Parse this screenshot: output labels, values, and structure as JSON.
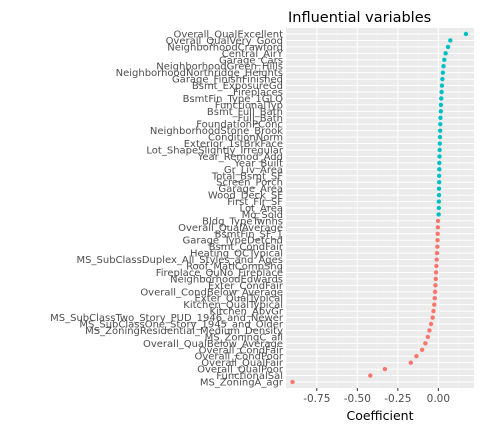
{
  "chart_data": {
    "type": "scatter",
    "title": "Influential variables",
    "xlabel": "Coefficient",
    "ylabel": "",
    "xlim": [
      -0.94,
      0.22
    ],
    "xticks": [
      -0.75,
      -0.5,
      -0.25,
      0.0
    ],
    "xtick_labels": [
      "-0.75",
      "-0.50",
      "-0.25",
      "0.00"
    ],
    "grid": true,
    "legend": "none",
    "colors": {
      "positive": "#00bfc4",
      "negative": "#f8766d"
    },
    "points": [
      {
        "label": "Overall_QualExcellent",
        "value": 0.17
      },
      {
        "label": "Overall_QualVery_Good",
        "value": 0.074
      },
      {
        "label": "NeighborhoodCrawford",
        "value": 0.06
      },
      {
        "label": "Central_AirY",
        "value": 0.045
      },
      {
        "label": "Garage_Cars",
        "value": 0.037
      },
      {
        "label": "NeighborhoodGreen_Hills",
        "value": 0.032
      },
      {
        "label": "NeighborhoodNorthridge_Heights",
        "value": 0.028
      },
      {
        "label": "Garage_FinishFinished",
        "value": 0.025
      },
      {
        "label": "Bsmt_ExposureGd",
        "value": 0.022
      },
      {
        "label": "Fireplaces",
        "value": 0.02
      },
      {
        "label": "BsmtFin_Type_1GLQ",
        "value": 0.018
      },
      {
        "label": "FunctionalTyp",
        "value": 0.016
      },
      {
        "label": "Bsmt_Full_Bath",
        "value": 0.015
      },
      {
        "label": "Full_Bath",
        "value": 0.013
      },
      {
        "label": "FoundationPConc",
        "value": 0.012
      },
      {
        "label": "NeighborhoodStone_Brook",
        "value": 0.011
      },
      {
        "label": "ConditionNorm",
        "value": 0.01
      },
      {
        "label": "Exterior_1stBrkFace",
        "value": 0.009
      },
      {
        "label": "Lot_ShapeSlightly_Irregular",
        "value": 0.008
      },
      {
        "label": "Year_Remod_Add",
        "value": 0.007
      },
      {
        "label": "Year_Built",
        "value": 0.006
      },
      {
        "label": "Gr_Liv_Area",
        "value": 0.006
      },
      {
        "label": "Total_Bsmt_SF",
        "value": 0.005
      },
      {
        "label": "Screen_Porch",
        "value": 0.005
      },
      {
        "label": "Garage_Area",
        "value": 0.004
      },
      {
        "label": "Wood_Deck_SF",
        "value": 0.004
      },
      {
        "label": "First_Flr_SF",
        "value": 0.003
      },
      {
        "label": "Lot_Area",
        "value": 0.003
      },
      {
        "label": "Mo_Sold",
        "value": 0.002
      },
      {
        "label": "Bldg_TypeTwnhs",
        "value": -0.002
      },
      {
        "label": "Overall_QualAverage",
        "value": -0.003
      },
      {
        "label": "BsmtFin_SF_1",
        "value": -0.004
      },
      {
        "label": "Garage_TypeDetchd",
        "value": -0.005
      },
      {
        "label": "Bsmt_CondFair",
        "value": -0.006
      },
      {
        "label": "Heating_QCTypical",
        "value": -0.008
      },
      {
        "label": "MS_SubClassDuplex_All_Styles_and_Ages",
        "value": -0.01
      },
      {
        "label": "Roof_MatlCompShg",
        "value": -0.012
      },
      {
        "label": "Fireplace_QuNo_Fireplace",
        "value": -0.014
      },
      {
        "label": "NeighborhoodEdwards",
        "value": -0.016
      },
      {
        "label": "Exter_CondFair",
        "value": -0.018
      },
      {
        "label": "Overall_CondBelow_Average",
        "value": -0.02
      },
      {
        "label": "Exter_QualTypical",
        "value": -0.022
      },
      {
        "label": "Kitchen_QualTypical",
        "value": -0.025
      },
      {
        "label": "Kitchen_AbvGr",
        "value": -0.03
      },
      {
        "label": "MS_SubClassTwo_Story_PUD_1946_and_Newer",
        "value": -0.035
      },
      {
        "label": "MS_SubClassOne_Story_1945_and_Older",
        "value": -0.045
      },
      {
        "label": "MS_ZoningResidential_Medium_Density",
        "value": -0.055
      },
      {
        "label": "MS_ZoningC_all",
        "value": -0.065
      },
      {
        "label": "Overall_QualBelow_Average",
        "value": -0.08
      },
      {
        "label": "Overall_CondFair",
        "value": -0.1
      },
      {
        "label": "Overall_CondPoor",
        "value": -0.135
      },
      {
        "label": "Overall_QualFair",
        "value": -0.17
      },
      {
        "label": "Overall_QualPoor",
        "value": -0.33
      },
      {
        "label": "FunctionalSal",
        "value": -0.42
      },
      {
        "label": "MS_ZoningA_agr",
        "value": -0.9
      }
    ]
  }
}
